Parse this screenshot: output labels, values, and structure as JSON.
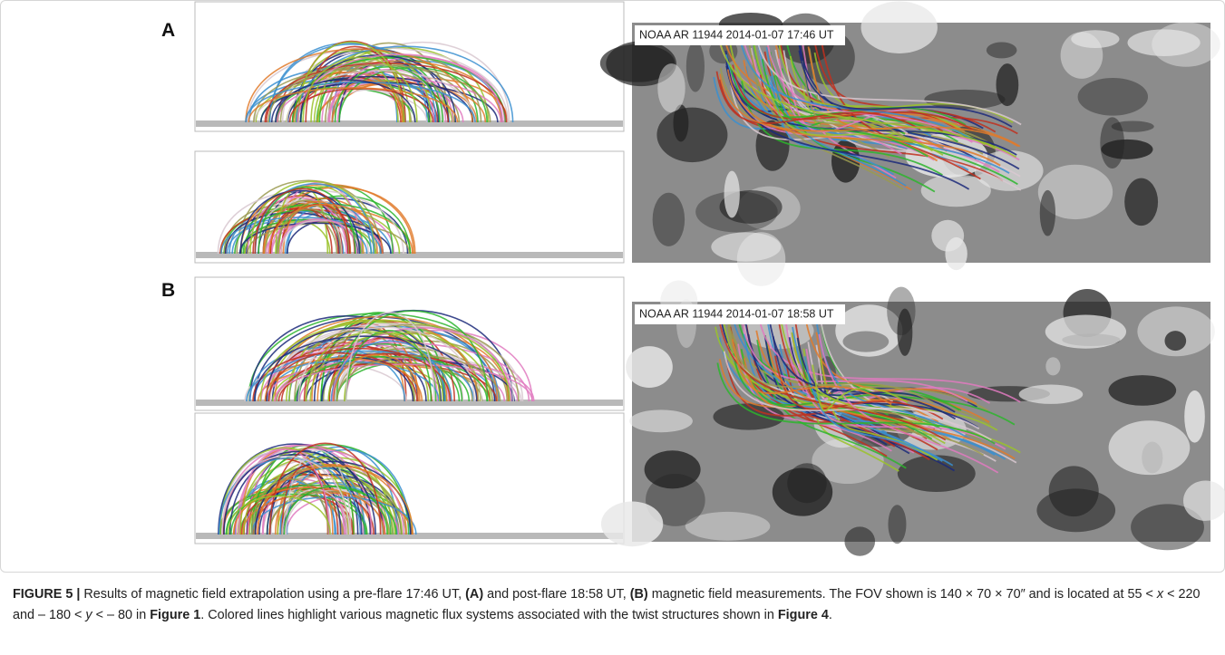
{
  "figure": {
    "panels": [
      {
        "label": "A",
        "map_label": "NOAA AR 11944 2014-01-07 17:46 UT"
      },
      {
        "label": "B",
        "map_label": "NOAA AR 11944 2014-01-07 18:58 UT"
      }
    ],
    "caption": [
      "FIGURE 5 | ",
      "Results of magnetic field extrapolation using a pre-flare 17:46 UT, ",
      "(A)",
      " and post-flare 18:58 UT, ",
      "(B)",
      " magnetic field measurements. The FOV shown is 140 × 70 × 70″ and is located at 55 < ",
      "x",
      " < 220 and – 180 < ",
      "y",
      " < – 80 in ",
      "Figure 1",
      ". Colored lines highlight various magnetic flux systems associated with the twist structures shown in ",
      "Figure 4",
      "."
    ]
  }
}
